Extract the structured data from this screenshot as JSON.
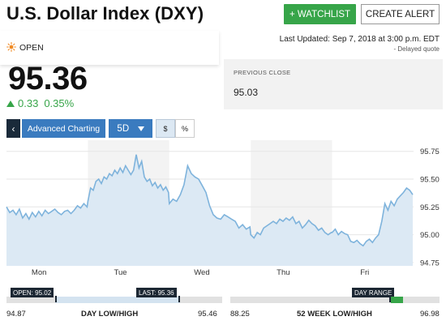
{
  "header": {
    "title": "U.S. Dollar Index (DXY)",
    "watchlist_label": "+ WATCHLIST",
    "alert_label": "CREATE ALERT"
  },
  "status": {
    "market_state": "OPEN",
    "last_updated": "Last Updated: Sep 7, 2018 at 3:00 p.m. EDT",
    "delay_note": "- Delayed quote"
  },
  "quote": {
    "price": "95.36",
    "change": "0.33",
    "change_pct": "0.35%",
    "direction": "up",
    "color_up": "#37a549"
  },
  "previous_close": {
    "label": "PREVIOUS CLOSE",
    "value": "95.03"
  },
  "toolbar": {
    "back_symbol": "‹",
    "advanced_label": "Advanced Charting",
    "period_label": "5D",
    "dollar_label": "$",
    "percent_label": "%",
    "accent_color": "#3a7bbf"
  },
  "chart_data": {
    "type": "area",
    "y_ticks": [
      "95.75",
      "95.50",
      "95.25",
      "95.00",
      "94.75"
    ],
    "ylim": [
      94.72,
      95.85
    ],
    "x_labels": [
      "Mon",
      "Tue",
      "Wed",
      "Thu",
      "Fri"
    ],
    "days": [
      {
        "label": "Mon",
        "values": [
          95.25,
          95.2,
          95.22,
          95.18,
          95.23,
          95.15,
          95.19,
          95.14,
          95.2,
          95.16,
          95.21,
          95.17,
          95.22,
          95.19,
          95.21,
          95.23,
          95.2,
          95.18,
          95.21,
          95.22,
          95.19,
          95.22,
          95.26,
          95.24,
          95.28,
          95.25
        ]
      },
      {
        "label": "Tue",
        "values": [
          95.3,
          95.42,
          95.4,
          95.48,
          95.5,
          95.46,
          95.52,
          95.5,
          95.55,
          95.53,
          95.58,
          95.55,
          95.6,
          95.56,
          95.62,
          95.58,
          95.54,
          95.58,
          95.72,
          95.6,
          95.66,
          95.52,
          95.48,
          95.5,
          95.44,
          95.47,
          95.42,
          95.45,
          95.4,
          95.43,
          95.38
        ]
      },
      {
        "label": "Wed",
        "values": [
          95.28,
          95.32,
          95.3,
          95.36,
          95.45,
          95.62,
          95.55,
          95.52,
          95.5,
          95.44,
          95.38,
          95.26,
          95.18,
          95.15,
          95.14,
          95.18,
          95.16,
          95.14,
          95.12,
          95.06,
          95.09,
          95.05,
          95.07
        ]
      },
      {
        "label": "Thu",
        "values": [
          95.0,
          94.97,
          95.02,
          95.0,
          95.06,
          95.08,
          95.1,
          95.12,
          95.1,
          95.14,
          95.12,
          95.15,
          95.13,
          95.16,
          95.1,
          95.12,
          95.06,
          95.09,
          95.13,
          95.1,
          95.08,
          95.04,
          95.06,
          95.02,
          95.0,
          95.02
        ]
      },
      {
        "label": "Fri",
        "values": [
          95.02,
          95.05,
          95.0,
          95.03,
          95.01,
          95.0,
          94.94,
          94.93,
          94.95,
          94.92,
          94.9,
          94.94,
          94.96,
          94.93,
          94.97,
          95.0,
          95.12,
          95.28,
          95.22,
          95.3,
          95.26,
          95.32,
          95.35,
          95.38,
          95.42,
          95.4,
          95.36
        ]
      }
    ],
    "line_color": "#7eb3dc",
    "fill_color": "#dce9f4",
    "grid": true
  },
  "day_range": {
    "open_label": "OPEN: 95.02",
    "last_label": "LAST: 95.36",
    "low": "94.87",
    "high": "95.46",
    "title": "DAY LOW/HIGH"
  },
  "week52_range": {
    "flag_label": "DAY RANGE",
    "low": "88.25",
    "high": "96.98",
    "title": "52 WEEK LOW/HIGH",
    "marker_color": "#37a549"
  }
}
